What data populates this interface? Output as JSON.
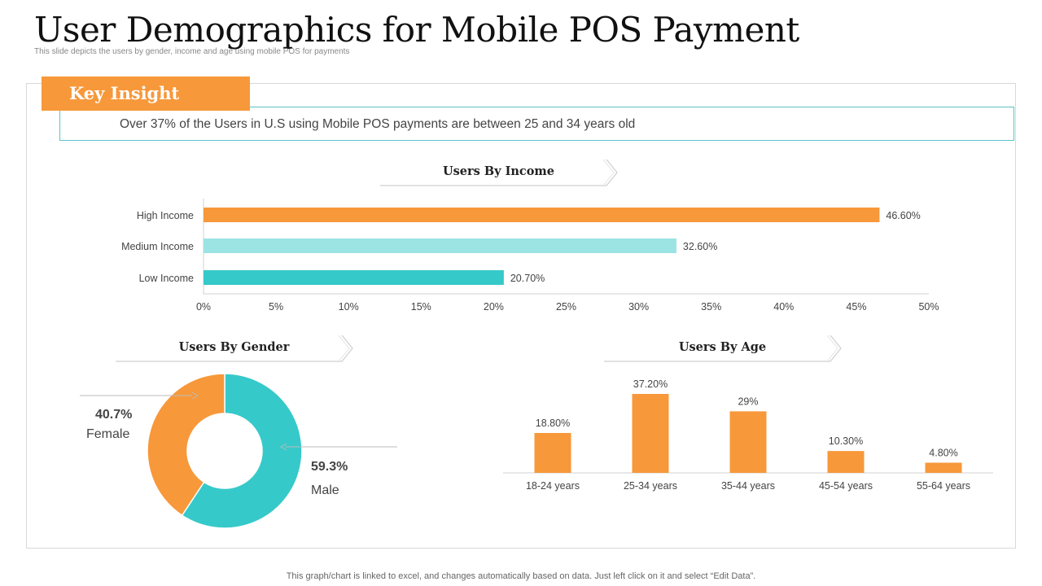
{
  "title": "User Demographics for Mobile POS Payment",
  "subtitle": "This slide depicts the users by gender, income and age using mobile  POS  for payments",
  "insight": {
    "tag": "Key Insight",
    "text": "Over 37% of the Users in U.S using Mobile POS payments are between 25 and 34 years old"
  },
  "footer": "This graph/chart is linked to excel,  and changes automatically based on data. Just left click on it and select “Edit Data”.",
  "colors": {
    "orange": "#f7983a",
    "light_teal": "#9ce3e3",
    "teal": "#36c9c9"
  },
  "chart_data": [
    {
      "type": "bar",
      "orientation": "horizontal",
      "title": "Users By Income",
      "categories": [
        "High Income",
        "Medium Income",
        "Low Income"
      ],
      "values": [
        46.6,
        32.6,
        20.7
      ],
      "value_labels": [
        "46.60%",
        "32.60%",
        "20.70%"
      ],
      "colors": [
        "#f7983a",
        "#9ce3e3",
        "#36c9c9"
      ],
      "xlim": [
        0,
        50
      ],
      "xticks": [
        "0%",
        "5%",
        "10%",
        "15%",
        "20%",
        "25%",
        "30%",
        "35%",
        "40%",
        "45%",
        "50%"
      ],
      "grid": false
    },
    {
      "type": "pie",
      "style": "donut",
      "title": "Users By Gender",
      "slices": [
        {
          "label": "Female",
          "value": 40.7,
          "value_label": "40.7%",
          "color": "#f7983a"
        },
        {
          "label": "Male",
          "value": 59.3,
          "value_label": "59.3%",
          "color": "#36c9c9"
        }
      ]
    },
    {
      "type": "bar",
      "orientation": "vertical",
      "title": "Users By Age",
      "categories": [
        "18-24 years",
        "25-34 years",
        "35-44 years",
        "45-54 years",
        "55-64 years"
      ],
      "values": [
        18.8,
        37.2,
        29,
        10.3,
        4.8
      ],
      "value_labels": [
        "18.80%",
        "37.20%",
        "29%",
        "10.30%",
        "4.80%"
      ],
      "color": "#f7983a",
      "grid": false
    }
  ]
}
